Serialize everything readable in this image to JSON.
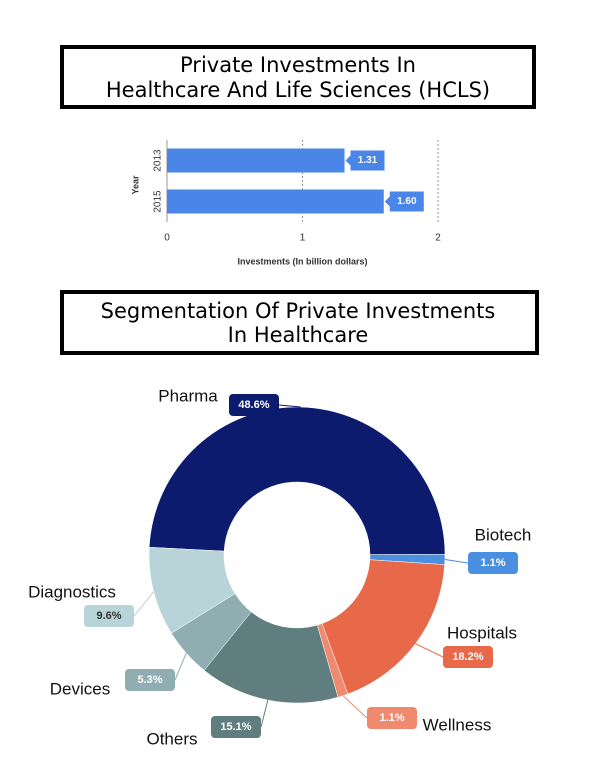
{
  "chart_data": [
    {
      "type": "bar",
      "title": [
        "Private Investments In",
        "Healthcare And Life Sciences (HCLS)"
      ],
      "categories": [
        "2013",
        "2015"
      ],
      "values": [
        1.31,
        1.6
      ],
      "value_labels": [
        "1.31",
        "1.60"
      ],
      "color": "#4a86e8",
      "xlim": [
        0,
        2
      ],
      "xticks": [
        0,
        1,
        2
      ],
      "grid": true,
      "x_label": "Investments (In billion dollars)",
      "y_label": "Year",
      "orientation": "horizontal"
    },
    {
      "type": "pie",
      "title": [
        "Segmentation Of Private Investments",
        "In Healthcare"
      ],
      "categories": [
        "Pharma",
        "Biotech",
        "Hospitals",
        "Wellness",
        "Others",
        "Devices",
        "Diagnostics"
      ],
      "values": [
        48.6,
        1.1,
        18.2,
        1.1,
        15.1,
        5.3,
        9.6
      ],
      "value_labels": [
        "48.6%",
        "1.1%",
        "18.2%",
        "1.1%",
        "15.1%",
        "5.3%",
        "9.6%"
      ],
      "colors": [
        "#0d1b6e",
        "#4a8fe0",
        "#e8694a",
        "#f08a6e",
        "#607d80",
        "#90aeb2",
        "#b8d4d8"
      ],
      "donut": true
    }
  ]
}
